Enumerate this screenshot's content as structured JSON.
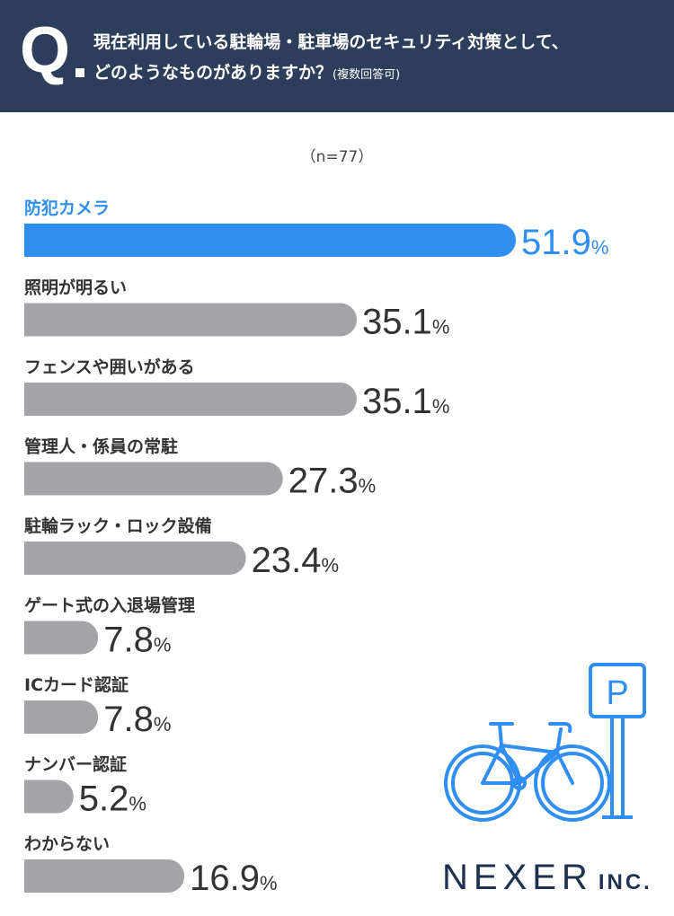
{
  "header": {
    "q_letter": "Q",
    "question_line1": "現在利用している駐輪場・駐車場のセキュリティ対策として、",
    "question_line2": "どのようなものがありますか？",
    "question_note": "(複数回答可)"
  },
  "n_label": "（n=77）",
  "chart_data": {
    "type": "bar",
    "orientation": "horizontal",
    "title": "現在利用している駐輪場・駐車場のセキュリティ対策として、どのようなものがありますか？(複数回答可)",
    "n": "n=77",
    "unit": "%",
    "categories": [
      "防犯カメラ",
      "照明が明るい",
      "フェンスや囲いがある",
      "管理人・係員の常駐",
      "駐輪ラック・ロック設備",
      "ゲート式の入退場管理",
      "ICカード認証",
      "ナンバー認証",
      "わからない"
    ],
    "values": [
      51.9,
      35.1,
      35.1,
      27.3,
      23.4,
      7.8,
      7.8,
      5.2,
      16.9
    ],
    "value_labels": [
      "51.9",
      "35.1",
      "35.1",
      "27.3",
      "23.4",
      "7.8",
      "7.8",
      "5.2",
      "16.9"
    ],
    "highlight_index": 0,
    "colors": {
      "highlight": "#2f8ef0",
      "default": "#a3a3a8",
      "highlight_text": "#2f8ef0",
      "default_text": "#333333"
    }
  },
  "illustration": {
    "icons": [
      "bicycle-icon",
      "parking-sign-icon"
    ],
    "sign_letter": "P",
    "color": "#2f8ef0"
  },
  "logo": {
    "main": "NEXER",
    "sub": "INC."
  }
}
